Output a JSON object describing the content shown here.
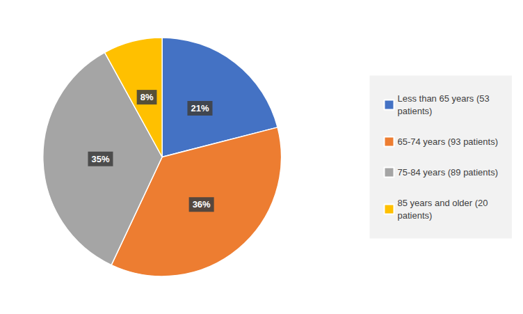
{
  "chart_data": {
    "type": "pie",
    "categories": [
      "Less than 65 years (53\npatients)",
      "65-74 years (93 patients)",
      "75-84 years (89 patients)",
      "85 years and older (20\npatients)"
    ],
    "values": [
      21,
      36,
      35,
      8
    ],
    "value_labels": [
      "21%",
      "36%",
      "35%",
      "8%"
    ],
    "colors": [
      "#4472C4",
      "#ED7D31",
      "#A5A5A5",
      "#FFC000"
    ],
    "data_labels": true,
    "legend": "right"
  }
}
